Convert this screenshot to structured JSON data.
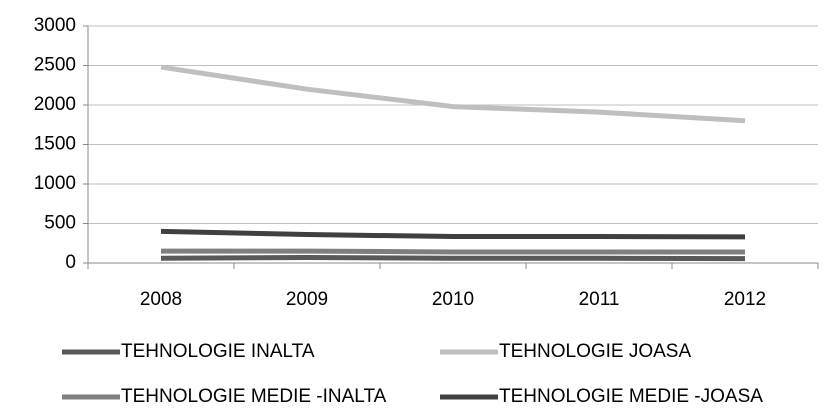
{
  "chart_data": {
    "type": "line",
    "categories": [
      "2008",
      "2009",
      "2010",
      "2011",
      "2012"
    ],
    "series": [
      {
        "name": "TEHNOLOGIE INALTA",
        "color": "#595959",
        "values": [
          60,
          70,
          60,
          60,
          55
        ]
      },
      {
        "name": "TEHNOLOGIE JOASA",
        "color": "#bfbfbf",
        "values": [
          2480,
          2200,
          1980,
          1910,
          1800
        ]
      },
      {
        "name": "TEHNOLOGIE MEDIE -INALTA",
        "color": "#7f7f7f",
        "values": [
          150,
          150,
          140,
          140,
          140
        ]
      },
      {
        "name": "TEHNOLOGIE MEDIE -JOASA",
        "color": "#404040",
        "values": [
          400,
          360,
          335,
          335,
          330
        ]
      }
    ],
    "ylim": [
      0,
      3000
    ],
    "yticks": [
      0,
      500,
      1000,
      1500,
      2000,
      2500,
      3000
    ],
    "grid": true,
    "legend": "bottom"
  }
}
